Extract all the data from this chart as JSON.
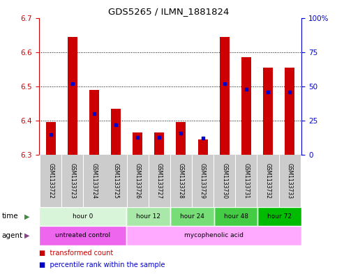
{
  "title": "GDS5265 / ILMN_1881824",
  "samples": [
    "GSM1133722",
    "GSM1133723",
    "GSM1133724",
    "GSM1133725",
    "GSM1133726",
    "GSM1133727",
    "GSM1133728",
    "GSM1133729",
    "GSM1133730",
    "GSM1133731",
    "GSM1133732",
    "GSM1133733"
  ],
  "transformed_count": [
    6.395,
    6.645,
    6.49,
    6.435,
    6.365,
    6.365,
    6.395,
    6.345,
    6.645,
    6.585,
    6.555,
    6.555
  ],
  "percentile_rank": [
    15,
    52,
    30,
    22,
    13,
    13,
    16,
    12,
    52,
    48,
    46,
    46
  ],
  "y_min": 6.3,
  "y_max": 6.7,
  "y_ticks": [
    6.3,
    6.4,
    6.5,
    6.6,
    6.7
  ],
  "y2_ticks": [
    0,
    25,
    50,
    75,
    100
  ],
  "bar_color": "#cc0000",
  "blue_color": "#0000cc",
  "time_groups": [
    {
      "label": "hour 0",
      "start": 0,
      "end": 4,
      "color": "#d9f5d9"
    },
    {
      "label": "hour 12",
      "start": 4,
      "end": 6,
      "color": "#aae8aa"
    },
    {
      "label": "hour 24",
      "start": 6,
      "end": 8,
      "color": "#77dd77"
    },
    {
      "label": "hour 48",
      "start": 8,
      "end": 10,
      "color": "#44cc44"
    },
    {
      "label": "hour 72",
      "start": 10,
      "end": 12,
      "color": "#00bb00"
    }
  ],
  "agent_groups": [
    {
      "label": "untreated control",
      "start": 0,
      "end": 4,
      "color": "#ee66ee"
    },
    {
      "label": "mycophenolic acid",
      "start": 4,
      "end": 12,
      "color": "#ffaaff"
    }
  ],
  "yaxis_color": "#cc0000",
  "y2axis_color": "#0000cc",
  "bar_width": 0.45,
  "sample_bg_color": "#cccccc",
  "time_arrow_color": "#448844",
  "agent_arrow_color": "#884488"
}
